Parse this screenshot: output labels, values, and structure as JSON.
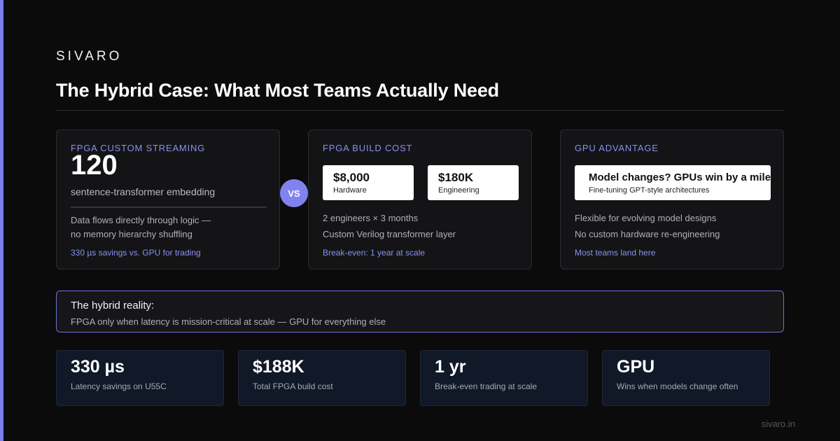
{
  "brand": "SIVARO",
  "title": "The Hybrid Case: What Most Teams Actually Need",
  "colors": {
    "accent": "#7b7fe8",
    "background": "#0b0b0c",
    "card": "#141416",
    "stat_card": "#111827"
  },
  "cards": [
    {
      "label": "FPGA CUSTOM STREAMING",
      "big_number": "120",
      "subtitle": "sentence-transformer embedding",
      "lines": [
        "Data flows directly through logic —",
        "no memory hierarchy shuffling"
      ],
      "link": "330 µs savings vs. GPU for trading"
    },
    {
      "label": "FPGA BUILD COST",
      "chips": [
        {
          "value": "$8,000",
          "label": "Hardware"
        },
        {
          "value": "$180K",
          "label": "Engineering"
        }
      ],
      "lines": [
        "2 engineers × 3 months",
        "Custom Verilog transformer layer"
      ],
      "link": "Break-even: 1 year at scale"
    },
    {
      "label": "GPU ADVANTAGE",
      "chip": {
        "value": "Model changes? GPUs win by a mile",
        "label": "Fine-tuning GPT-style architectures"
      },
      "lines": [
        "Flexible for evolving model designs",
        "No custom hardware re-engineering"
      ],
      "link": "Most teams land here"
    }
  ],
  "vs": "VS",
  "hybrid": {
    "title": "The hybrid reality:",
    "text": "FPGA only when latency is mission-critical at scale — GPU for everything else"
  },
  "stats": [
    {
      "value": "330 µs",
      "label": "Latency savings on U55C"
    },
    {
      "value": "$188K",
      "label": "Total FPGA build cost"
    },
    {
      "value": "1 yr",
      "label": "Break-even trading at scale"
    },
    {
      "value": "GPU",
      "label": "Wins when models change often"
    }
  ],
  "footer": "sivaro.in"
}
